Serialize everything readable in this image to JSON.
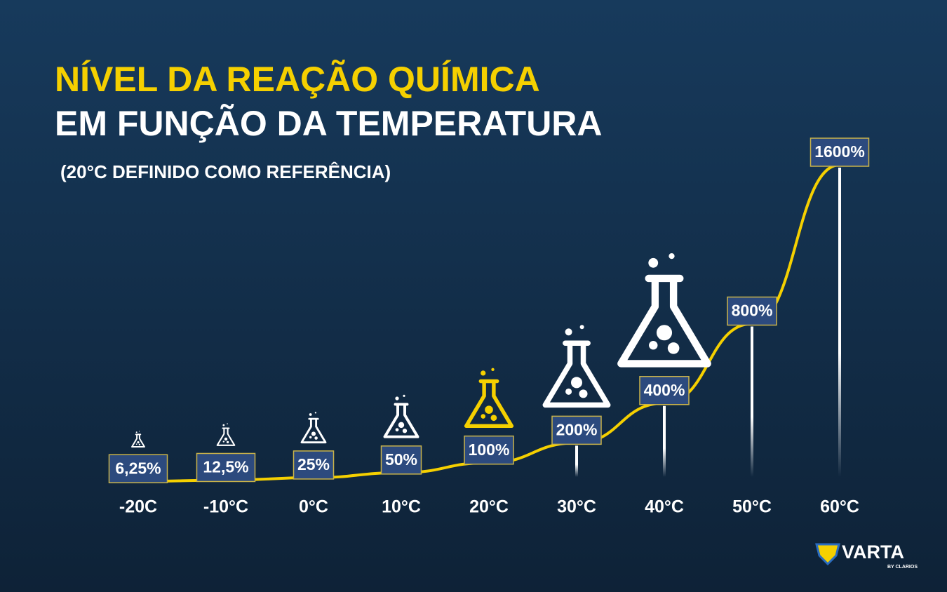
{
  "chart_data": {
    "type": "line",
    "title": [
      "NÍVEL DA REAÇÃO QUÍMICA",
      "EM FUNÇÃO DA TEMPERATURA"
    ],
    "subtitle": "(20°C DEFINIDO COMO REFERÊNCIA)",
    "categories": [
      "-20C",
      "-10°C",
      "0°C",
      "10°C",
      "20°C",
      "30°C",
      "40°C",
      "50°C",
      "60°C"
    ],
    "values": [
      6.25,
      12.5,
      25,
      50,
      100,
      200,
      400,
      800,
      1600
    ],
    "value_labels": [
      "6,25%",
      "12,5%",
      "25%",
      "50%",
      "100%",
      "200%",
      "400%",
      "800%",
      "1600%"
    ],
    "color": "#f5d000",
    "highlight": "20°C"
  },
  "brand": {
    "name": "VARTA",
    "tagline": "BY CLARIOS"
  }
}
